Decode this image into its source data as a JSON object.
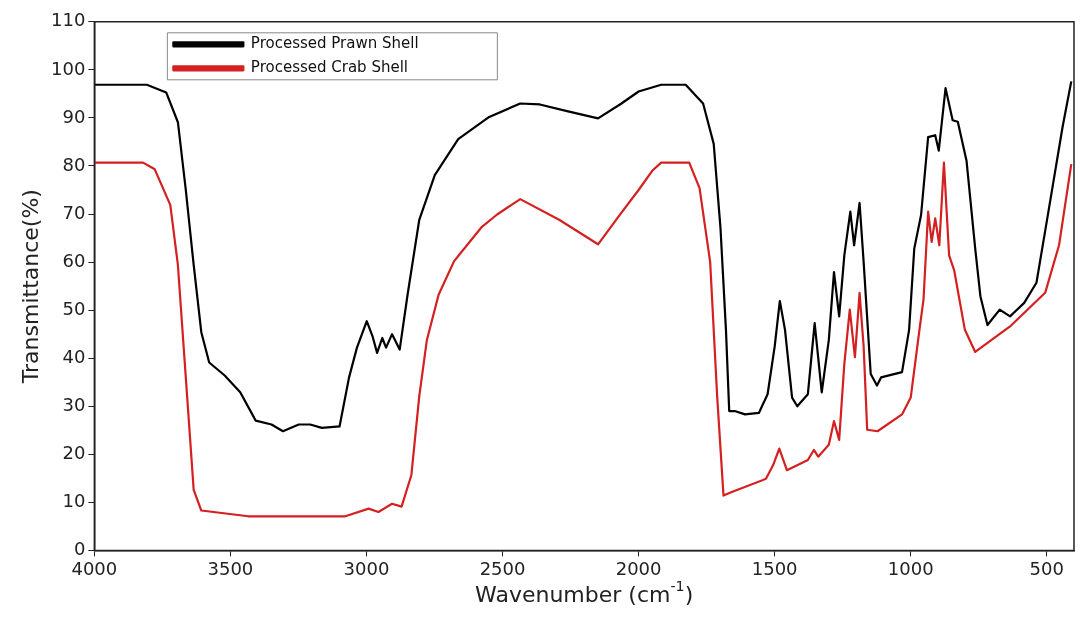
{
  "chart_data": {
    "type": "line",
    "xlabel": "Wavenumber (cm$^{-1}$)",
    "ylabel": "Transmittance(%)",
    "xlim": [
      4000,
      400
    ],
    "ylim": [
      0,
      110
    ],
    "xticks": [
      4000,
      3500,
      3000,
      2500,
      2000,
      1500,
      1000,
      500
    ],
    "yticks": [
      0,
      10,
      20,
      30,
      40,
      50,
      60,
      70,
      80,
      90,
      100,
      110
    ],
    "grid": false,
    "legend": "top left",
    "marker": "none",
    "line_style": "solid",
    "series": [
      {
        "name": "Processed Prawn Shell",
        "color": "#000000",
        "x": [
          4000,
          3807,
          3736,
          3693,
          3664,
          3635,
          3607,
          3578,
          3521,
          3464,
          3407,
          3349,
          3307,
          3249,
          3207,
          3164,
          3099,
          3064,
          3035,
          2999,
          2978,
          2961,
          2942,
          2928,
          2906,
          2878,
          2849,
          2806,
          2749,
          2663,
          2549,
          2435,
          2363,
          2263,
          2149,
          2063,
          2000,
          1917,
          1827,
          1763,
          1724,
          1699,
          1679,
          1667,
          1647,
          1609,
          1558,
          1526,
          1500,
          1481,
          1462,
          1436,
          1417,
          1378,
          1353,
          1327,
          1301,
          1282,
          1263,
          1244,
          1222,
          1208,
          1188,
          1173,
          1147,
          1124,
          1109,
          1032,
          1006,
          987,
          962,
          936,
          910,
          897,
          872,
          846,
          827,
          795,
          763,
          744,
          718,
          673,
          635,
          583,
          538,
          494,
          442,
          410
        ],
        "values": [
          96.9,
          96.9,
          95.3,
          89.1,
          75,
          59.4,
          45.4,
          39.1,
          36.4,
          32.9,
          27,
          26.2,
          24.8,
          26.2,
          26.2,
          25.5,
          25.8,
          36,
          42.2,
          47.7,
          44.6,
          41.1,
          44.2,
          42.2,
          45,
          41.8,
          53.2,
          68.8,
          78.1,
          85.6,
          90.2,
          93,
          92.8,
          91.4,
          89.9,
          93,
          95.5,
          96.9,
          96.9,
          93,
          84.6,
          67,
          45.9,
          29,
          29,
          28.3,
          28.6,
          32.5,
          42.4,
          51.9,
          45.9,
          31.8,
          30,
          32.5,
          47.3,
          32.9,
          43.8,
          57.9,
          48.7,
          61.4,
          70.5,
          63.5,
          72.3,
          60,
          36.7,
          34.3,
          36,
          37.1,
          45.9,
          62.8,
          69.8,
          86,
          86.4,
          83.2,
          96.2,
          89.5,
          89.2,
          81.1,
          62.8,
          52.9,
          46.9,
          50.1,
          48.7,
          51.5,
          55.7,
          70.5,
          88.1,
          97.6
        ]
      },
      {
        "name": "Processed Crab Shell",
        "color": "#d42020",
        "x": [
          4000,
          3821,
          3778,
          3721,
          3693,
          3664,
          3635,
          3607,
          3435,
          3078,
          2992,
          2956,
          2906,
          2871,
          2835,
          2806,
          2778,
          2735,
          2678,
          2578,
          2520,
          2435,
          2292,
          2149,
          2063,
          2000,
          1950,
          1917,
          1814,
          1776,
          1737,
          1711,
          1688,
          1660,
          1532,
          1506,
          1483,
          1455,
          1378,
          1356,
          1340,
          1301,
          1282,
          1263,
          1244,
          1224,
          1205,
          1188,
          1173,
          1160,
          1122,
          1032,
          1000,
          968,
          953,
          936,
          923,
          910,
          895,
          878,
          859,
          840,
          801,
          763,
          635,
          506,
          455,
          410
        ],
        "values": [
          80.7,
          80.7,
          79.3,
          71.9,
          59.4,
          36,
          12.6,
          8.3,
          7.1,
          7.1,
          8.7,
          8,
          9.7,
          9.1,
          15.7,
          32.1,
          43.8,
          53.2,
          60.2,
          67.2,
          69.9,
          73.1,
          68.8,
          63.7,
          70.3,
          75,
          79,
          80.7,
          80.7,
          75.4,
          60,
          31.8,
          11.4,
          12.1,
          14.9,
          17.7,
          21.2,
          16.7,
          18.8,
          20.9,
          19.5,
          22,
          26.9,
          23,
          38.8,
          50.1,
          40.2,
          53.6,
          42.4,
          25.1,
          24.8,
          28.3,
          31.8,
          45.9,
          52.2,
          70.5,
          64.2,
          69.1,
          63.5,
          80.7,
          61.4,
          58.2,
          45.9,
          41.3,
          46.6,
          53.6,
          63.5,
          80.4
        ]
      }
    ]
  }
}
